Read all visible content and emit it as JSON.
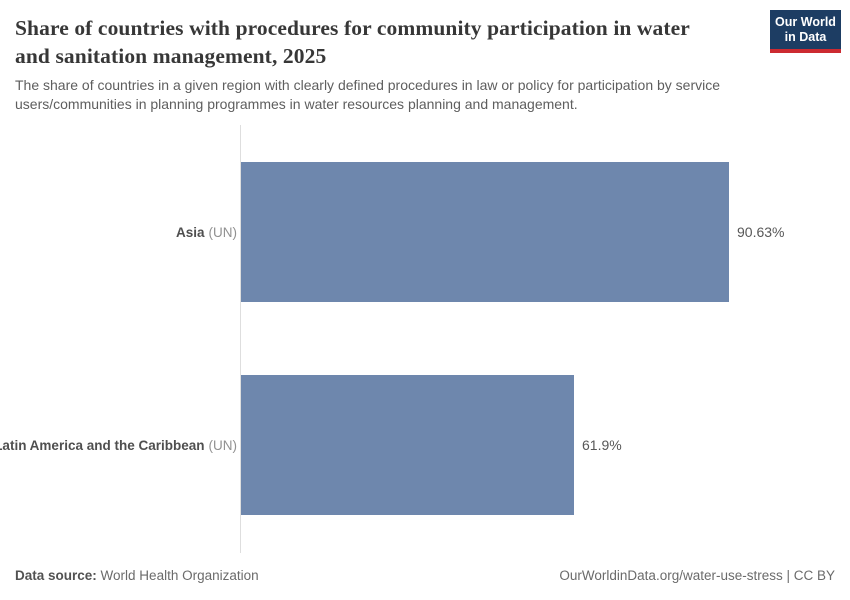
{
  "logo": {
    "line1": "Our World",
    "line2": "in Data",
    "bg_color": "#1d3d63",
    "accent_color": "#cc2a31",
    "text_color": "#ffffff"
  },
  "header": {
    "title": "Share of countries with procedures for community participation in water and sanitation management, 2025",
    "subtitle": "The share of countries in a given region with clearly defined procedures in law or policy for participation by service users/communities in planning programmes in water resources planning and management."
  },
  "chart_data": {
    "type": "bar",
    "orientation": "horizontal",
    "categories": [
      "Asia (UN)",
      "Latin America and the Caribbean (UN)"
    ],
    "category_parts": [
      {
        "name": "Asia",
        "suffix": "(UN)"
      },
      {
        "name": "Latin America and the Caribbean",
        "suffix": "(UN)"
      }
    ],
    "values": [
      90.63,
      61.9
    ],
    "value_labels": [
      "90.63%",
      "61.9%"
    ],
    "title": "Share of countries with procedures for community participation in water and sanitation management, 2025",
    "xlabel": "",
    "ylabel": "",
    "xlim": [
      0,
      100
    ],
    "grid": false,
    "legend": "none",
    "bar_color": "#6e87ad",
    "axis_line_color": "#dedede"
  },
  "footer": {
    "datasource_label": "Data source:",
    "datasource_value": "World Health Organization",
    "right_text": "OurWorldinData.org/water-use-stress | CC BY"
  }
}
